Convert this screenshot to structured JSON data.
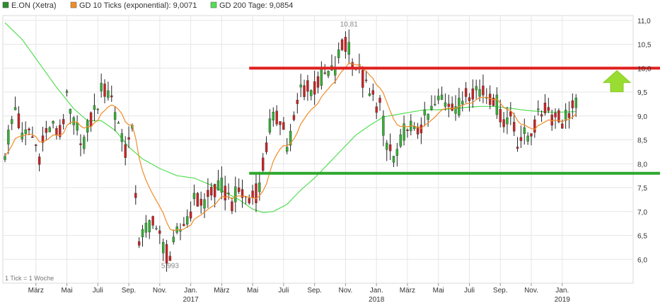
{
  "chart_data": {
    "type": "candlestick",
    "legend": [
      {
        "label": "E.ON (Xetra)",
        "color": "#2e8b2e"
      },
      {
        "label": "GD 10 Ticks (exponential): 9,0071",
        "color": "#f08c28"
      },
      {
        "label": "GD 200 Tage: 9,0854",
        "color": "#55dd55"
      }
    ],
    "ylim": [
      5.5,
      11.1
    ],
    "yticks": [
      {
        "v": 6.0,
        "label": "6,0"
      },
      {
        "v": 6.5,
        "label": "6,5"
      },
      {
        "v": 7.0,
        "label": "7,0"
      },
      {
        "v": 7.5,
        "label": "7,5"
      },
      {
        "v": 8.0,
        "label": "8,0"
      },
      {
        "v": 8.5,
        "label": "8,5"
      },
      {
        "v": 9.0,
        "label": "9,0"
      },
      {
        "v": 9.5,
        "label": "9,5"
      },
      {
        "v": 10.0,
        "label": "10,0"
      },
      {
        "v": 10.5,
        "label": "10,5"
      },
      {
        "v": 11.0,
        "label": "11,0"
      }
    ],
    "x_domain": [
      0,
      182
    ],
    "xticks": [
      {
        "x": 9,
        "label": "März"
      },
      {
        "x": 18,
        "label": "Mai"
      },
      {
        "x": 27,
        "label": "Juli"
      },
      {
        "x": 36,
        "label": "Sep."
      },
      {
        "x": 45,
        "label": "Nov."
      },
      {
        "x": 54,
        "label": "Jan.",
        "year": "2017"
      },
      {
        "x": 63,
        "label": "März"
      },
      {
        "x": 72,
        "label": "Mai"
      },
      {
        "x": 81,
        "label": "Juli"
      },
      {
        "x": 90,
        "label": "Sep."
      },
      {
        "x": 99,
        "label": "Nov."
      },
      {
        "x": 108,
        "label": "Jan.",
        "year": "2018"
      },
      {
        "x": 117,
        "label": "März"
      },
      {
        "x": 126,
        "label": "Mai"
      },
      {
        "x": 135,
        "label": "Juli"
      },
      {
        "x": 144,
        "label": "Sep."
      },
      {
        "x": 153,
        "label": "Nov."
      },
      {
        "x": 162,
        "label": "Jan.",
        "year": "2019"
      }
    ],
    "resistance_line": 10.0,
    "support_line": 7.8,
    "annotations": [
      {
        "x": 100,
        "y": 10.81,
        "label": "10,81",
        "pos": "above"
      },
      {
        "x": 48,
        "y": 5.993,
        "label": "5,993",
        "pos": "below"
      }
    ],
    "note": "1 Tick = 1 Woche",
    "anchors": [
      [
        0,
        8.3
      ],
      [
        3,
        9.2
      ],
      [
        5,
        8.5
      ],
      [
        7,
        8.7
      ],
      [
        10,
        8.2
      ],
      [
        13,
        8.8
      ],
      [
        16,
        8.6
      ],
      [
        18,
        9.3
      ],
      [
        20,
        8.8
      ],
      [
        23,
        8.5
      ],
      [
        26,
        9.1
      ],
      [
        28,
        9.5
      ],
      [
        30,
        9.6
      ],
      [
        33,
        8.9
      ],
      [
        35,
        8.3
      ],
      [
        37,
        8.6
      ],
      [
        38,
        7.4
      ],
      [
        39,
        6.4
      ],
      [
        41,
        6.6
      ],
      [
        43,
        6.9
      ],
      [
        45,
        6.4
      ],
      [
        47,
        6.1
      ],
      [
        48,
        6.0
      ],
      [
        50,
        6.5
      ],
      [
        53,
        6.9
      ],
      [
        55,
        7.2
      ],
      [
        58,
        7.2
      ],
      [
        61,
        7.4
      ],
      [
        63,
        7.5
      ],
      [
        66,
        7.2
      ],
      [
        68,
        7.4
      ],
      [
        71,
        7.2
      ],
      [
        74,
        7.5
      ],
      [
        77,
        8.8
      ],
      [
        80,
        9.0
      ],
      [
        82,
        8.4
      ],
      [
        84,
        8.8
      ],
      [
        86,
        9.6
      ],
      [
        89,
        9.5
      ],
      [
        92,
        9.8
      ],
      [
        95,
        9.9
      ],
      [
        98,
        10.4
      ],
      [
        100,
        10.5
      ],
      [
        101,
        10.2
      ],
      [
        103,
        9.9
      ],
      [
        106,
        9.4
      ],
      [
        109,
        9.2
      ],
      [
        111,
        8.4
      ],
      [
        113,
        8.1
      ],
      [
        115,
        8.4
      ],
      [
        117,
        8.9
      ],
      [
        119,
        8.6
      ],
      [
        121,
        8.8
      ],
      [
        124,
        9.1
      ],
      [
        127,
        9.4
      ],
      [
        130,
        9.3
      ],
      [
        132,
        9.2
      ],
      [
        134,
        9.5
      ],
      [
        137,
        9.6
      ],
      [
        139,
        9.5
      ],
      [
        142,
        9.4
      ],
      [
        145,
        8.9
      ],
      [
        147,
        9.0
      ],
      [
        149,
        8.5
      ],
      [
        152,
        8.6
      ],
      [
        154,
        8.8
      ],
      [
        157,
        9.2
      ],
      [
        159,
        9.0
      ],
      [
        162,
        8.9
      ],
      [
        164,
        9.1
      ],
      [
        166,
        9.2
      ]
    ],
    "sma_anchors": [
      [
        0,
        10.95
      ],
      [
        5,
        10.6
      ],
      [
        10,
        10.1
      ],
      [
        15,
        9.6
      ],
      [
        20,
        9.15
      ],
      [
        24,
        8.9
      ],
      [
        28,
        8.9
      ],
      [
        32,
        8.7
      ],
      [
        36,
        8.35
      ],
      [
        40,
        8.1
      ],
      [
        45,
        7.9
      ],
      [
        50,
        7.75
      ],
      [
        55,
        7.7
      ],
      [
        60,
        7.55
      ],
      [
        64,
        7.4
      ],
      [
        68,
        7.25
      ],
      [
        72,
        7.05
      ],
      [
        75,
        6.98
      ],
      [
        78,
        7.0
      ],
      [
        82,
        7.15
      ],
      [
        86,
        7.45
      ],
      [
        90,
        7.7
      ],
      [
        94,
        8.0
      ],
      [
        98,
        8.3
      ],
      [
        102,
        8.6
      ],
      [
        106,
        8.8
      ],
      [
        110,
        8.98
      ],
      [
        114,
        9.03
      ],
      [
        118,
        9.08
      ],
      [
        122,
        9.13
      ],
      [
        126,
        9.13
      ],
      [
        130,
        9.15
      ],
      [
        134,
        9.18
      ],
      [
        138,
        9.2
      ],
      [
        142,
        9.2
      ],
      [
        146,
        9.17
      ],
      [
        150,
        9.13
      ],
      [
        154,
        9.1
      ],
      [
        158,
        9.08
      ],
      [
        162,
        9.08
      ],
      [
        166,
        9.09
      ]
    ]
  }
}
